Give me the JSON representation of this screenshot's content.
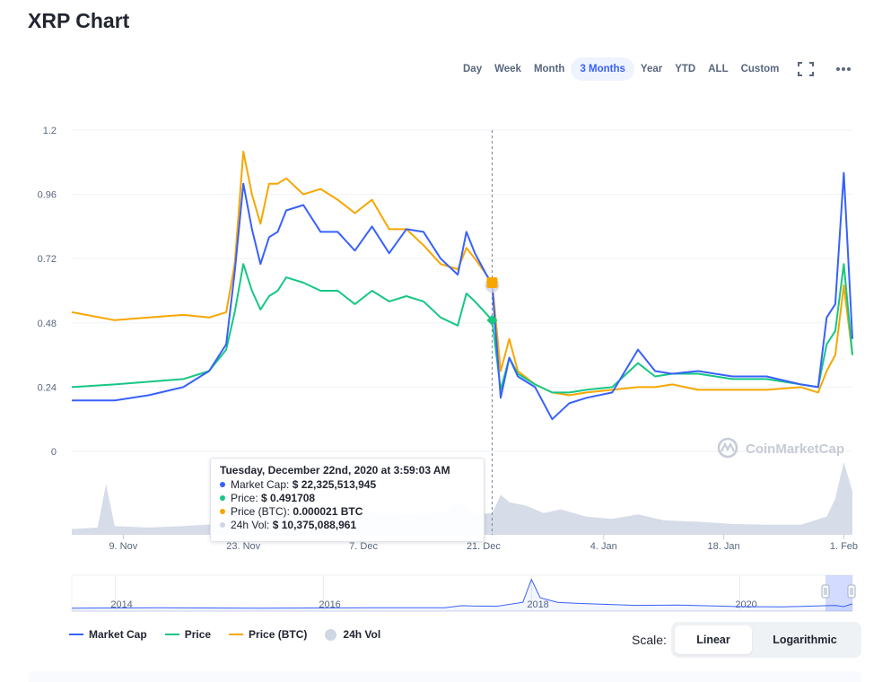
{
  "title": "XRP Chart",
  "ranges": [
    "Day",
    "Week",
    "Month",
    "3 Months",
    "Year",
    "YTD",
    "ALL",
    "Custom"
  ],
  "active_range": "3 Months",
  "tools": {
    "fullscreen_icon": "fullscreen-icon",
    "more_icon": "more-horizontal-icon"
  },
  "watermark": "CoinMarketCap",
  "tooltip": {
    "title": "Tuesday, December 22nd, 2020 at 3:59:03 AM",
    "rows": [
      {
        "label": "Market Cap:",
        "value": "$ 22,325,513,945",
        "color": "#3861fb"
      },
      {
        "label": "Price:",
        "value": "$ 0.491708",
        "color": "#16c784"
      },
      {
        "label": "Price (BTC):",
        "value": "0.000021 BTC",
        "color": "#f7a600"
      },
      {
        "label": "24h Vol:",
        "value": "$ 10,375,088,961",
        "color": "#cfd6e4"
      }
    ]
  },
  "legend": [
    {
      "label": "Market Cap",
      "color": "#3861fb",
      "shape": "line"
    },
    {
      "label": "Price",
      "color": "#16c784",
      "shape": "line"
    },
    {
      "label": "Price (BTC)",
      "color": "#f7a600",
      "shape": "line"
    },
    {
      "label": "24h Vol",
      "color": "#cfd6e4",
      "shape": "circle"
    }
  ],
  "scale": {
    "label": "Scale:",
    "options": [
      "Linear",
      "Logarithmic"
    ],
    "active": "Linear"
  },
  "chart_data": [
    {
      "type": "line",
      "y_ticks": [
        "1.2",
        "0.96",
        "0.72",
        "0.48",
        "0.24",
        "0"
      ],
      "ylim": [
        0,
        1.2
      ],
      "x_ticks": [
        "9. Nov",
        "23. Nov",
        "7. Dec",
        "21. Dec",
        "4. Jan",
        "18. Jan",
        "1. Feb"
      ],
      "x": [
        "2020-11-03",
        "2020-11-08",
        "2020-11-12",
        "2020-11-16",
        "2020-11-19",
        "2020-11-21",
        "2020-11-22",
        "2020-11-23",
        "2020-11-24",
        "2020-11-25",
        "2020-11-26",
        "2020-11-27",
        "2020-11-28",
        "2020-11-30",
        "2020-12-02",
        "2020-12-04",
        "2020-12-06",
        "2020-12-08",
        "2020-12-10",
        "2020-12-12",
        "2020-12-14",
        "2020-12-16",
        "2020-12-18",
        "2020-12-19",
        "2020-12-20",
        "2020-12-22",
        "2020-12-23",
        "2020-12-24",
        "2020-12-25",
        "2020-12-27",
        "2020-12-29",
        "2020-12-31",
        "2021-01-02",
        "2021-01-05",
        "2021-01-08",
        "2021-01-10",
        "2021-01-12",
        "2021-01-15",
        "2021-01-19",
        "2021-01-23",
        "2021-01-27",
        "2021-01-29",
        "2021-01-30",
        "2021-01-31",
        "2021-02-01",
        "2021-02-02"
      ],
      "grid": true,
      "series": [
        {
          "name": "Market Cap",
          "color": "#3861fb",
          "values": [
            0.19,
            0.19,
            0.21,
            0.24,
            0.3,
            0.4,
            0.67,
            1.0,
            0.83,
            0.7,
            0.8,
            0.82,
            0.9,
            0.92,
            0.82,
            0.82,
            0.75,
            0.84,
            0.74,
            0.83,
            0.82,
            0.72,
            0.66,
            0.82,
            0.74,
            0.62,
            0.2,
            0.35,
            0.28,
            0.24,
            0.12,
            0.18,
            0.2,
            0.22,
            0.38,
            0.3,
            0.29,
            0.3,
            0.28,
            0.28,
            0.25,
            0.24,
            0.5,
            0.55,
            1.04,
            0.42
          ]
        },
        {
          "name": "Price",
          "color": "#16c784",
          "values": [
            0.24,
            0.25,
            0.26,
            0.27,
            0.3,
            0.38,
            0.52,
            0.7,
            0.6,
            0.53,
            0.58,
            0.6,
            0.65,
            0.63,
            0.6,
            0.6,
            0.55,
            0.6,
            0.56,
            0.58,
            0.56,
            0.5,
            0.47,
            0.59,
            0.56,
            0.49,
            0.23,
            0.35,
            0.29,
            0.25,
            0.22,
            0.22,
            0.23,
            0.24,
            0.33,
            0.28,
            0.29,
            0.29,
            0.27,
            0.27,
            0.25,
            0.24,
            0.4,
            0.45,
            0.7,
            0.36
          ]
        },
        {
          "name": "Price (BTC)",
          "color": "#f7a600",
          "values": [
            0.52,
            0.49,
            0.5,
            0.51,
            0.5,
            0.52,
            0.7,
            1.12,
            0.96,
            0.85,
            1.0,
            1.0,
            1.02,
            0.96,
            0.98,
            0.94,
            0.89,
            0.94,
            0.83,
            0.83,
            0.77,
            0.7,
            0.68,
            0.76,
            0.72,
            0.63,
            0.3,
            0.42,
            0.3,
            0.25,
            0.22,
            0.21,
            0.22,
            0.23,
            0.24,
            0.24,
            0.25,
            0.23,
            0.23,
            0.23,
            0.24,
            0.22,
            0.3,
            0.36,
            0.62,
            0.36
          ]
        }
      ],
      "tooltip_x": "2020-12-22"
    },
    {
      "type": "area",
      "series": [
        {
          "name": "24h Vol",
          "color": "#cfd6e4"
        }
      ],
      "x": [
        "2020-11-03",
        "2020-11-06",
        "2020-11-07",
        "2020-11-08",
        "2020-11-12",
        "2020-11-16",
        "2020-11-20",
        "2020-11-23",
        "2020-11-26",
        "2020-11-30",
        "2020-12-04",
        "2020-12-08",
        "2020-12-12",
        "2020-12-16",
        "2020-12-18",
        "2020-12-20",
        "2020-12-22",
        "2020-12-23",
        "2020-12-24",
        "2020-12-26",
        "2020-12-28",
        "2020-12-30",
        "2021-01-02",
        "2021-01-05",
        "2021-01-08",
        "2021-01-11",
        "2021-01-15",
        "2021-01-19",
        "2021-01-23",
        "2021-01-27",
        "2021-01-30",
        "2021-01-31",
        "2021-02-01",
        "2021-02-02"
      ],
      "values": [
        0.08,
        0.1,
        0.7,
        0.12,
        0.1,
        0.12,
        0.15,
        0.45,
        0.35,
        0.3,
        0.25,
        0.3,
        0.28,
        0.3,
        0.45,
        0.28,
        0.3,
        0.55,
        0.45,
        0.4,
        0.3,
        0.35,
        0.25,
        0.22,
        0.28,
        0.2,
        0.18,
        0.15,
        0.14,
        0.14,
        0.25,
        0.5,
        1.0,
        0.6
      ]
    },
    {
      "type": "area",
      "x_ticks": [
        "2014",
        "2016",
        "2018",
        "2020"
      ],
      "x": [
        "2013-08",
        "2014-06",
        "2015-06",
        "2016-06",
        "2017-03",
        "2017-05",
        "2017-06",
        "2017-09",
        "2017-12",
        "2018-01",
        "2018-02",
        "2018-04",
        "2018-06",
        "2019-01",
        "2019-06",
        "2020-01",
        "2020-06",
        "2020-12",
        "2021-01",
        "2021-02"
      ],
      "values": [
        0.01,
        0.02,
        0.01,
        0.02,
        0.02,
        0.09,
        0.08,
        0.07,
        0.2,
        0.95,
        0.35,
        0.2,
        0.17,
        0.1,
        0.11,
        0.06,
        0.05,
        0.1,
        0.06,
        0.15
      ]
    }
  ]
}
